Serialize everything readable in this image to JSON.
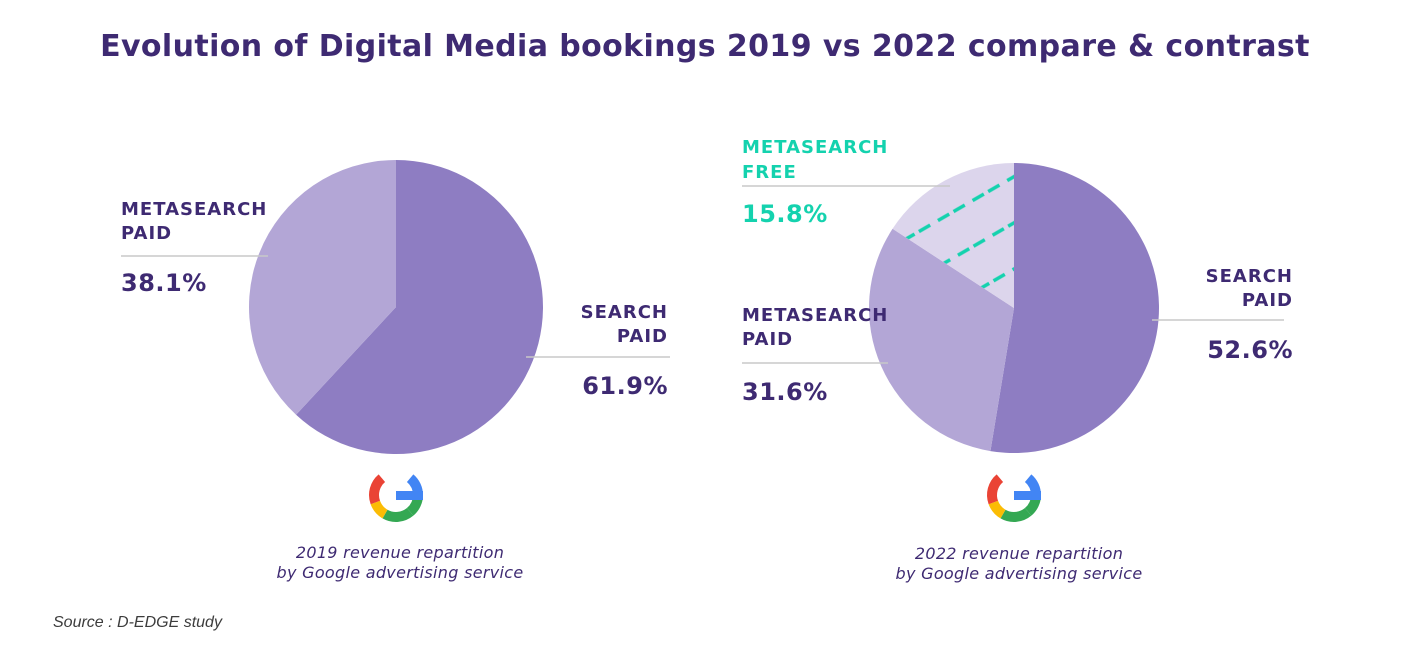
{
  "title": "Evolution of Digital Media bookings 2019 vs 2022 compare & contrast",
  "source": "Source : D-EDGE study",
  "logo_icon": "google-g-logo",
  "colors": {
    "title": "#3e2a72",
    "search_paid": "#8e7dc2",
    "metasearch_paid": "#b3a6d6",
    "metasearch_free": "#dcd5ec",
    "metasearch_free_accent": "#14d2ae",
    "leader_line": "#c8c8c8"
  },
  "chart_data": [
    {
      "type": "pie",
      "caption_line1": "2019 revenue repartition",
      "caption_line2": "by Google advertising service",
      "slices": [
        {
          "label_line1": "SEARCH",
          "label_line2": "PAID",
          "value": 61.9,
          "value_label": "61.9%",
          "color": "#8e7dc2",
          "pattern": false
        },
        {
          "label_line1": "METASEARCH",
          "label_line2": "PAID",
          "value": 38.1,
          "value_label": "38.1%",
          "color": "#b3a6d6",
          "pattern": false
        }
      ]
    },
    {
      "type": "pie",
      "caption_line1": "2022 revenue repartition",
      "caption_line2": "by Google advertising service",
      "slices": [
        {
          "label_line1": "SEARCH",
          "label_line2": "PAID",
          "value": 52.6,
          "value_label": "52.6%",
          "color": "#8e7dc2",
          "pattern": false
        },
        {
          "label_line1": "METASEARCH",
          "label_line2": "PAID",
          "value": 31.6,
          "value_label": "31.6%",
          "color": "#b3a6d6",
          "pattern": false
        },
        {
          "label_line1": "METASEARCH",
          "label_line2": "FREE",
          "value": 15.8,
          "value_label": "15.8%",
          "color": "#dcd5ec",
          "pattern": true
        }
      ]
    }
  ]
}
